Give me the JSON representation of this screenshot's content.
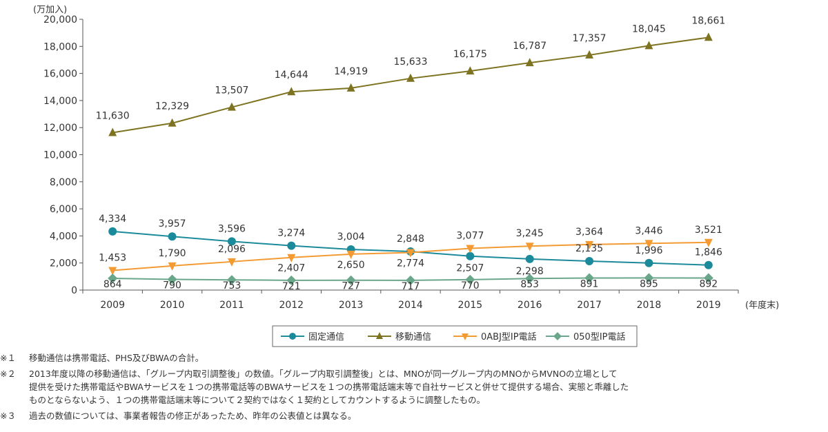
{
  "chart_data": {
    "type": "line",
    "ylabel": "(万加入)",
    "xlabel": "(年度末)",
    "ylim": [
      0,
      20000
    ],
    "yticks": [
      "0",
      "2,000",
      "4,000",
      "6,000",
      "8,000",
      "10,000",
      "12,000",
      "14,000",
      "16,000",
      "18,000",
      "20,000"
    ],
    "categories": [
      "2009",
      "2010",
      "2011",
      "2012",
      "2013",
      "2014",
      "2015",
      "2016",
      "2017",
      "2018",
      "2019"
    ],
    "grid": false,
    "legend_position": "bottom",
    "series": [
      {
        "name": "固定通信",
        "color": "#1b8a9a",
        "marker": "circle",
        "values": [
          4334,
          3957,
          3596,
          3274,
          3004,
          2848,
          2507,
          2298,
          2135,
          1996,
          1846
        ],
        "labels": [
          "4,334",
          "3,957",
          "3,596",
          "3,274",
          "3,004",
          "2,848",
          "2,507",
          "2,298",
          "2,135",
          "1,996",
          "1,846"
        ]
      },
      {
        "name": "移動通信",
        "color": "#7d7320",
        "marker": "triangle-up",
        "values": [
          11630,
          12329,
          13507,
          14644,
          14919,
          15633,
          16175,
          16787,
          17357,
          18045,
          18661
        ],
        "labels": [
          "11,630",
          "12,329",
          "13,507",
          "14,644",
          "14,919",
          "15,633",
          "16,175",
          "16,787",
          "17,357",
          "18,045",
          "18,661"
        ]
      },
      {
        "name": "0ABJ型IP電話",
        "color": "#f39a32",
        "marker": "triangle-down",
        "values": [
          1453,
          1790,
          2096,
          2407,
          2650,
          2774,
          3077,
          3245,
          3364,
          3446,
          3521
        ],
        "labels": [
          "1,453",
          "1,790",
          "2,096",
          "2,407",
          "2,650",
          "2,774",
          "3,077",
          "3,245",
          "3,364",
          "3,446",
          "3,521"
        ]
      },
      {
        "name": "050型IP電話",
        "color": "#6aa68a",
        "marker": "diamond",
        "values": [
          864,
          790,
          753,
          721,
          727,
          717,
          770,
          853,
          891,
          895,
          892
        ],
        "labels": [
          "864",
          "790",
          "753",
          "721",
          "727",
          "717",
          "770",
          "853",
          "891",
          "895",
          "892"
        ]
      }
    ]
  },
  "notes": [
    {
      "mark": "※１",
      "text": "移動通信は携帯電話、PHS及びBWAの合計。"
    },
    {
      "mark": "※２",
      "text": "2013年度以降の移動通信は、「グループ内取引調整後」の数値。「グループ内取引調整後」とは、MNOが同一グループ内のMNOからMVNOの立場として\n提供を受けた携帯電話やBWAサービスを１つの携帯電話等のBWAサービスを１つの携帯電話端末等で自社サービスと併せて提供する場合、実態と乖離した\nものとならないよう、１つの携帯電話端末等について２契約ではなく１契約としてカウントするように調整したもの。"
    },
    {
      "mark": "※３",
      "text": "過去の数値については、事業者報告の修正があったため、昨年の公表値とは異なる。"
    }
  ]
}
